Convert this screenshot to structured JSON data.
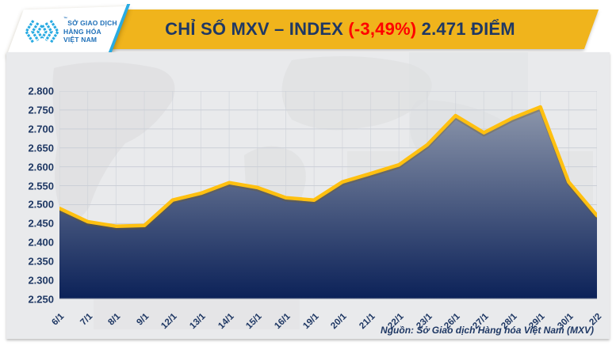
{
  "header": {
    "logo": {
      "line1": "SỞ GIAO DỊCH",
      "line2": "HÀNG HÓA",
      "line3": "VIỆT NAM",
      "tm": "™"
    },
    "title": {
      "prefix": "CHỈ SỐ MXV – INDEX ",
      "change": "(-3,49%)",
      "suffix": " 2.471 ĐIỂM"
    }
  },
  "footer": {
    "source": "Nguồn: Sở Giao dịch Hàng hóa Việt Nam (MXV)"
  },
  "colors": {
    "banner_yellow": "#F0B41C",
    "title_navy": "#1F3864",
    "change_red": "#FF0000",
    "logo_mark_blue": "#29ABE2",
    "logo_text_blue": "#1D6FB8",
    "axis_text_navy": "#1F3864",
    "panel_bg": "#E9EAEC",
    "gridline": "#CBCFD7",
    "axis_line": "#A8AEBB",
    "line_yellow": "#FFC010",
    "area_top": "#8C96AB",
    "area_bottom": "#0B2158"
  },
  "chart_data": {
    "type": "area",
    "title": "CHỈ SỐ MXV – INDEX (-3,49%) 2.471 ĐIỂM",
    "categories": [
      "6/1",
      "7/1",
      "8/1",
      "9/1",
      "12/1",
      "13/1",
      "14/1",
      "15/1",
      "16/1",
      "19/1",
      "20/1",
      "21/1",
      "22/1",
      "23/1",
      "26/1",
      "27/1",
      "28/1",
      "29/1",
      "30/1",
      "2/2"
    ],
    "values": [
      2.49,
      2.455,
      2.443,
      2.445,
      2.512,
      2.53,
      2.558,
      2.545,
      2.518,
      2.512,
      2.56,
      2.582,
      2.605,
      2.658,
      2.735,
      2.69,
      2.728,
      2.758,
      2.56,
      2.471
    ],
    "xlabel": "",
    "ylabel": "",
    "ylim": [
      2.25,
      2.8
    ],
    "ytick_step": 0.05,
    "grid": true,
    "legend": "none",
    "last_value_label": "2.471",
    "change_label": "(-3,49%)"
  }
}
